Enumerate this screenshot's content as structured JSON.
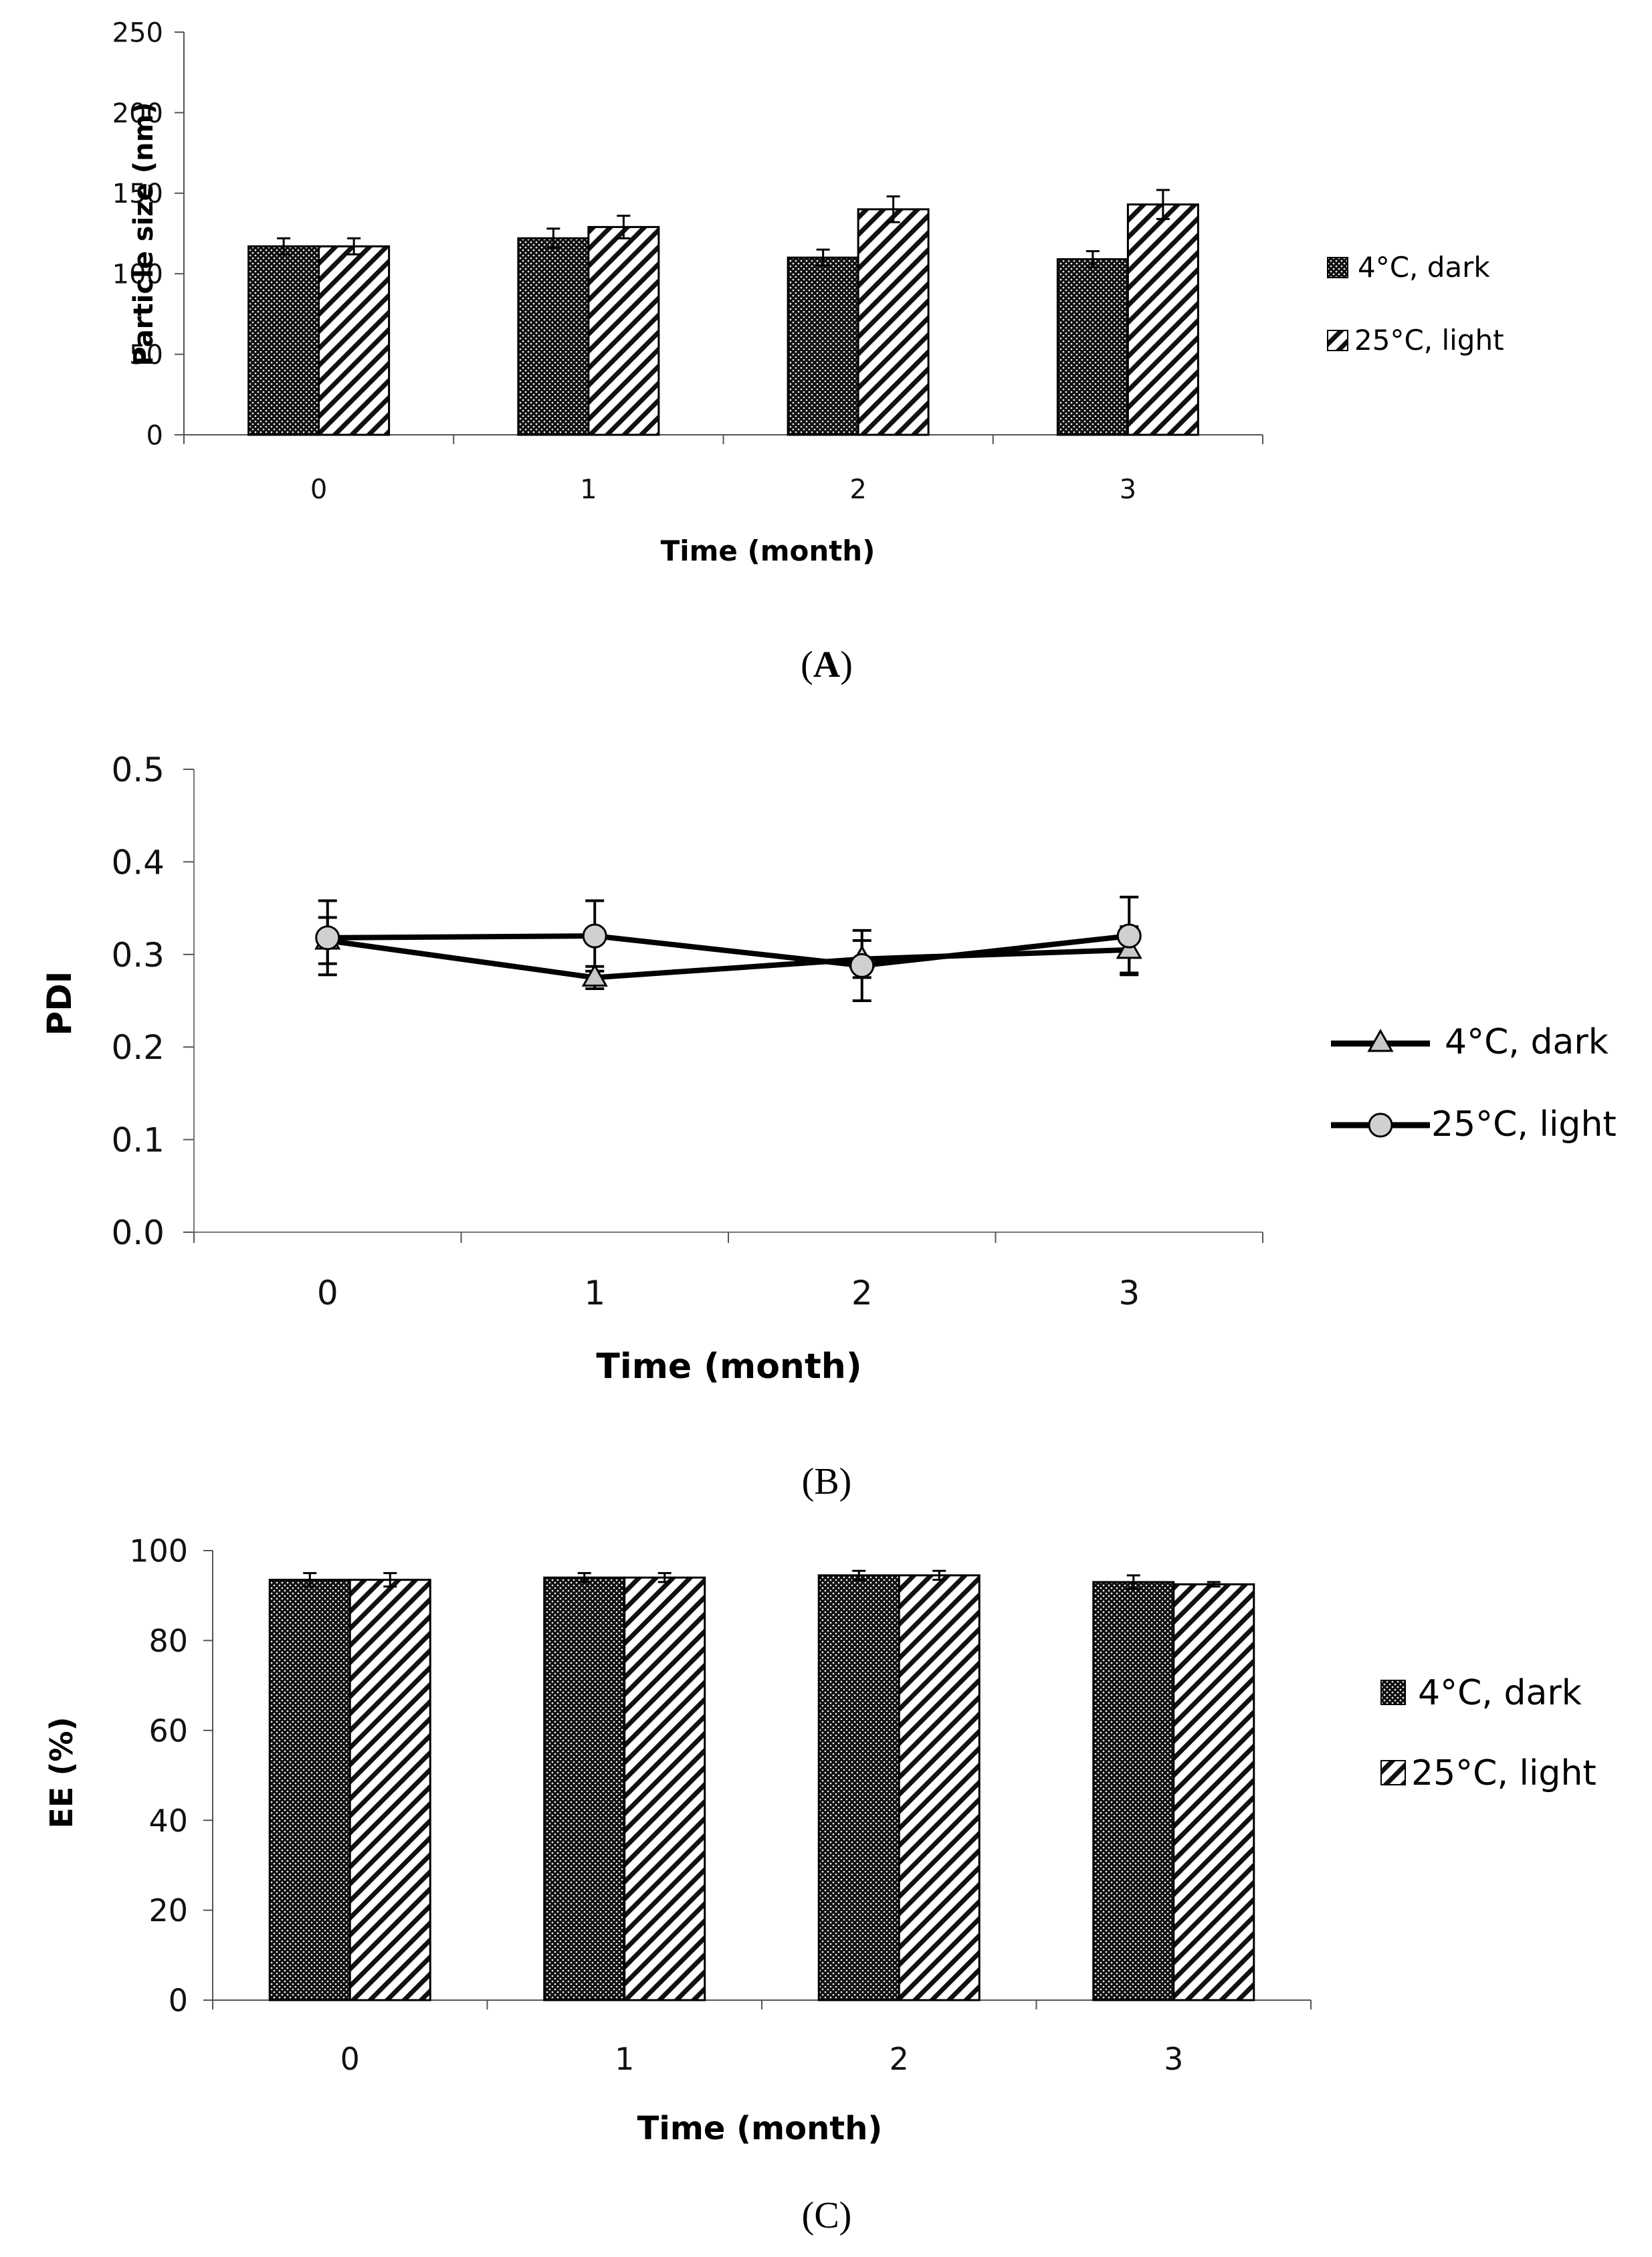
{
  "chart_data": [
    {
      "panel": "(A)",
      "panel_letter": "A",
      "type": "bar",
      "categories": [
        "0",
        "1",
        "2",
        "3"
      ],
      "series": [
        {
          "name": "4°C, dark",
          "values": [
            117,
            122,
            110,
            109
          ],
          "errors": [
            5,
            6,
            5,
            5
          ]
        },
        {
          "name": "25°C, light",
          "values": [
            117,
            129,
            140,
            143
          ],
          "errors": [
            5,
            7,
            8,
            9
          ]
        }
      ],
      "xlabel": "Time (month)",
      "ylabel": "Particle size (nm)",
      "ylim": [
        0,
        250
      ],
      "yticks": [
        "0",
        "50",
        "100",
        "150",
        "200",
        "250"
      ],
      "legend": "right"
    },
    {
      "panel": "(B)",
      "type": "line",
      "categories": [
        "0",
        "1",
        "2",
        "3"
      ],
      "series": [
        {
          "name": "4°C, dark",
          "marker": "triangle",
          "values": [
            0.315,
            0.275,
            0.295,
            0.305
          ],
          "errors": [
            0.025,
            0.012,
            0.02,
            0.025
          ]
        },
        {
          "name": "25°C, light",
          "marker": "circle",
          "values": [
            0.318,
            0.32,
            0.288,
            0.32
          ],
          "errors": [
            0.04,
            0.038,
            0.038,
            0.042
          ]
        }
      ],
      "xlabel": "Time (month)",
      "ylabel": "PDI",
      "ylim": [
        0,
        0.5
      ],
      "yticks": [
        "0.0",
        "0.1",
        "0.2",
        "0.3",
        "0.4",
        "0.5"
      ],
      "legend": "right"
    },
    {
      "panel": "(C)",
      "type": "bar",
      "categories": [
        "0",
        "1",
        "2",
        "3"
      ],
      "series": [
        {
          "name": "4°C, dark",
          "values": [
            93.5,
            94,
            94.5,
            93
          ],
          "errors": [
            1.5,
            1,
            1,
            1.5
          ]
        },
        {
          "name": "25°C, light",
          "values": [
            93.5,
            94,
            94.5,
            92.5
          ],
          "errors": [
            1.5,
            1,
            1,
            0.5
          ]
        }
      ],
      "xlabel": "Time (month)",
      "ylabel": "EE (%)",
      "ylim": [
        0,
        100
      ],
      "yticks": [
        "0",
        "20",
        "40",
        "60",
        "80",
        "100"
      ],
      "legend": "right"
    }
  ]
}
